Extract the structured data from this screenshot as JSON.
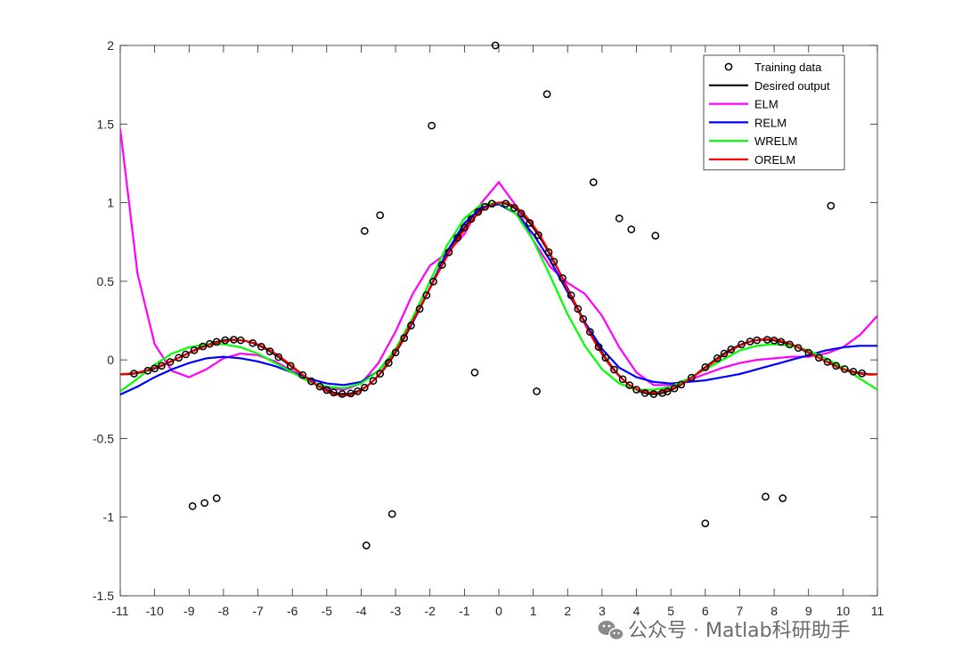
{
  "chart_data": {
    "type": "line",
    "title": "",
    "xlabel": "",
    "ylabel": "",
    "xlim": [
      -11,
      11
    ],
    "ylim": [
      -1.5,
      2
    ],
    "xticks": [
      -11,
      -10,
      -9,
      -8,
      -7,
      -6,
      -5,
      -4,
      -3,
      -2,
      -1,
      0,
      1,
      2,
      3,
      4,
      5,
      6,
      7,
      8,
      9,
      10,
      11
    ],
    "yticks": [
      -1.5,
      -1,
      -0.5,
      0,
      0.5,
      1,
      1.5,
      2
    ],
    "grid": false,
    "legend_position": "top-right",
    "training_label": "Training data",
    "training_data_outliers": [
      [
        -8.9,
        -0.93
      ],
      [
        -8.55,
        -0.91
      ],
      [
        -8.2,
        -0.88
      ],
      [
        -3.9,
        0.82
      ],
      [
        -3.45,
        0.92
      ],
      [
        -3.85,
        -1.18
      ],
      [
        -3.1,
        -0.98
      ],
      [
        -1.95,
        1.49
      ],
      [
        -0.7,
        -0.08
      ],
      [
        -0.1,
        2.0
      ],
      [
        1.1,
        -0.2
      ],
      [
        1.4,
        1.69
      ],
      [
        2.75,
        1.13
      ],
      [
        3.5,
        0.9
      ],
      [
        3.85,
        0.83
      ],
      [
        4.55,
        0.79
      ],
      [
        6.0,
        -1.04
      ],
      [
        7.75,
        -0.87
      ],
      [
        8.25,
        -0.88
      ],
      [
        9.65,
        0.98
      ]
    ],
    "training_data_x": [
      -10.6,
      -10.2,
      -10.0,
      -9.8,
      -9.55,
      -9.3,
      -9.1,
      -8.85,
      -8.6,
      -8.4,
      -8.2,
      -7.95,
      -7.7,
      -7.5,
      -7.15,
      -6.9,
      -6.65,
      -6.4,
      -6.05,
      -5.7,
      -5.45,
      -5.2,
      -5.0,
      -4.8,
      -4.55,
      -4.3,
      -4.1,
      -3.9,
      -3.65,
      -3.45,
      -3.2,
      -3.0,
      -2.75,
      -2.55,
      -2.3,
      -2.1,
      -1.9,
      -1.65,
      -1.45,
      -1.2,
      -1.0,
      -0.8,
      -0.6,
      -0.4,
      -0.2,
      0.2,
      0.45,
      0.65,
      0.9,
      1.15,
      1.45,
      1.6,
      1.85,
      2.1,
      2.3,
      2.45,
      2.65,
      2.9,
      3.1,
      3.35,
      3.6,
      3.8,
      4.0,
      4.25,
      4.5,
      4.75,
      4.9,
      5.1,
      5.3,
      5.6,
      6.0,
      6.35,
      6.55,
      6.75,
      7.05,
      7.3,
      7.5,
      7.8,
      8.0,
      8.2,
      8.45,
      8.7,
      9.0,
      9.3,
      9.55,
      9.8,
      10.05,
      10.3,
      10.55
    ],
    "series": [
      {
        "name": "Desired output",
        "color": "#000000",
        "func": "sinc"
      },
      {
        "name": "ELM",
        "color": "#ff00ff",
        "func": "elm",
        "x": [
          -11,
          -10.5,
          -10,
          -9.5,
          -9,
          -8.5,
          -8,
          -7.5,
          -7,
          -6.5,
          -6,
          -5.5,
          -5,
          -4.5,
          -4,
          -3.5,
          -3,
          -2.5,
          -2,
          -1.5,
          -1,
          -0.5,
          0,
          0.5,
          1,
          1.5,
          2,
          2.5,
          3,
          3.5,
          4,
          4.5,
          5,
          5.5,
          6,
          6.5,
          7,
          7.5,
          8,
          8.5,
          9,
          9.5,
          10,
          10.5,
          11
        ],
        "y": [
          1.47,
          0.55,
          0.1,
          -0.07,
          -0.11,
          -0.06,
          0.01,
          0.04,
          0.03,
          -0.01,
          -0.07,
          -0.13,
          -0.18,
          -0.19,
          -0.15,
          -0.02,
          0.18,
          0.42,
          0.6,
          0.68,
          0.8,
          1.0,
          1.13,
          0.98,
          0.76,
          0.59,
          0.49,
          0.42,
          0.28,
          0.08,
          -0.08,
          -0.16,
          -0.16,
          -0.13,
          -0.09,
          -0.05,
          -0.02,
          0.0,
          0.01,
          0.02,
          0.02,
          0.04,
          0.08,
          0.16,
          0.28
        ]
      },
      {
        "name": "RELM",
        "color": "#0000ff",
        "func": "relm",
        "x": [
          -11,
          -10.5,
          -10,
          -9.5,
          -9,
          -8.5,
          -8,
          -7.5,
          -7,
          -6.5,
          -6,
          -5.5,
          -5,
          -4.5,
          -4,
          -3.5,
          -3,
          -2.5,
          -2,
          -1.5,
          -1,
          -0.5,
          0,
          0.5,
          1,
          1.5,
          2,
          2.5,
          3,
          3.5,
          4,
          4.5,
          5,
          5.5,
          6,
          6.5,
          7,
          7.5,
          8,
          8.5,
          9,
          9.5,
          10,
          10.5,
          11
        ],
        "y": [
          -0.22,
          -0.17,
          -0.11,
          -0.06,
          -0.02,
          0.01,
          0.02,
          0.01,
          -0.01,
          -0.04,
          -0.08,
          -0.12,
          -0.15,
          -0.16,
          -0.14,
          -0.07,
          0.06,
          0.24,
          0.46,
          0.69,
          0.87,
          0.97,
          0.99,
          0.93,
          0.8,
          0.63,
          0.43,
          0.24,
          0.07,
          -0.05,
          -0.11,
          -0.14,
          -0.15,
          -0.14,
          -0.13,
          -0.11,
          -0.09,
          -0.06,
          -0.03,
          0.0,
          0.03,
          0.06,
          0.08,
          0.09,
          0.09
        ]
      },
      {
        "name": "WRELM",
        "color": "#00ff00",
        "func": "wrelm",
        "x": [
          -11,
          -10.5,
          -10,
          -9.5,
          -9,
          -8.5,
          -8,
          -7.5,
          -7,
          -6.5,
          -6,
          -5.5,
          -5,
          -4.5,
          -4,
          -3.5,
          -3,
          -2.5,
          -2,
          -1.5,
          -1,
          -0.5,
          0,
          0.5,
          1,
          1.5,
          2,
          2.5,
          3,
          3.5,
          4,
          4.5,
          5,
          5.5,
          6,
          6.5,
          7,
          7.5,
          8,
          8.5,
          9,
          9.5,
          10,
          10.5,
          11
        ],
        "y": [
          -0.2,
          -0.12,
          -0.03,
          0.04,
          0.08,
          0.1,
          0.1,
          0.08,
          0.04,
          -0.02,
          -0.08,
          -0.14,
          -0.17,
          -0.18,
          -0.15,
          -0.07,
          0.07,
          0.27,
          0.5,
          0.73,
          0.9,
          0.99,
          1.0,
          0.93,
          0.76,
          0.53,
          0.29,
          0.09,
          -0.06,
          -0.15,
          -0.19,
          -0.19,
          -0.17,
          -0.12,
          -0.06,
          0.0,
          0.06,
          0.09,
          0.1,
          0.09,
          0.06,
          0.01,
          -0.05,
          -0.12,
          -0.19
        ]
      },
      {
        "name": "ORELM",
        "color": "#ff0000",
        "func": "orelm"
      }
    ]
  },
  "watermark": {
    "text": "公众号 · Matlab科研助手",
    "icon": "wechat-icon"
  }
}
